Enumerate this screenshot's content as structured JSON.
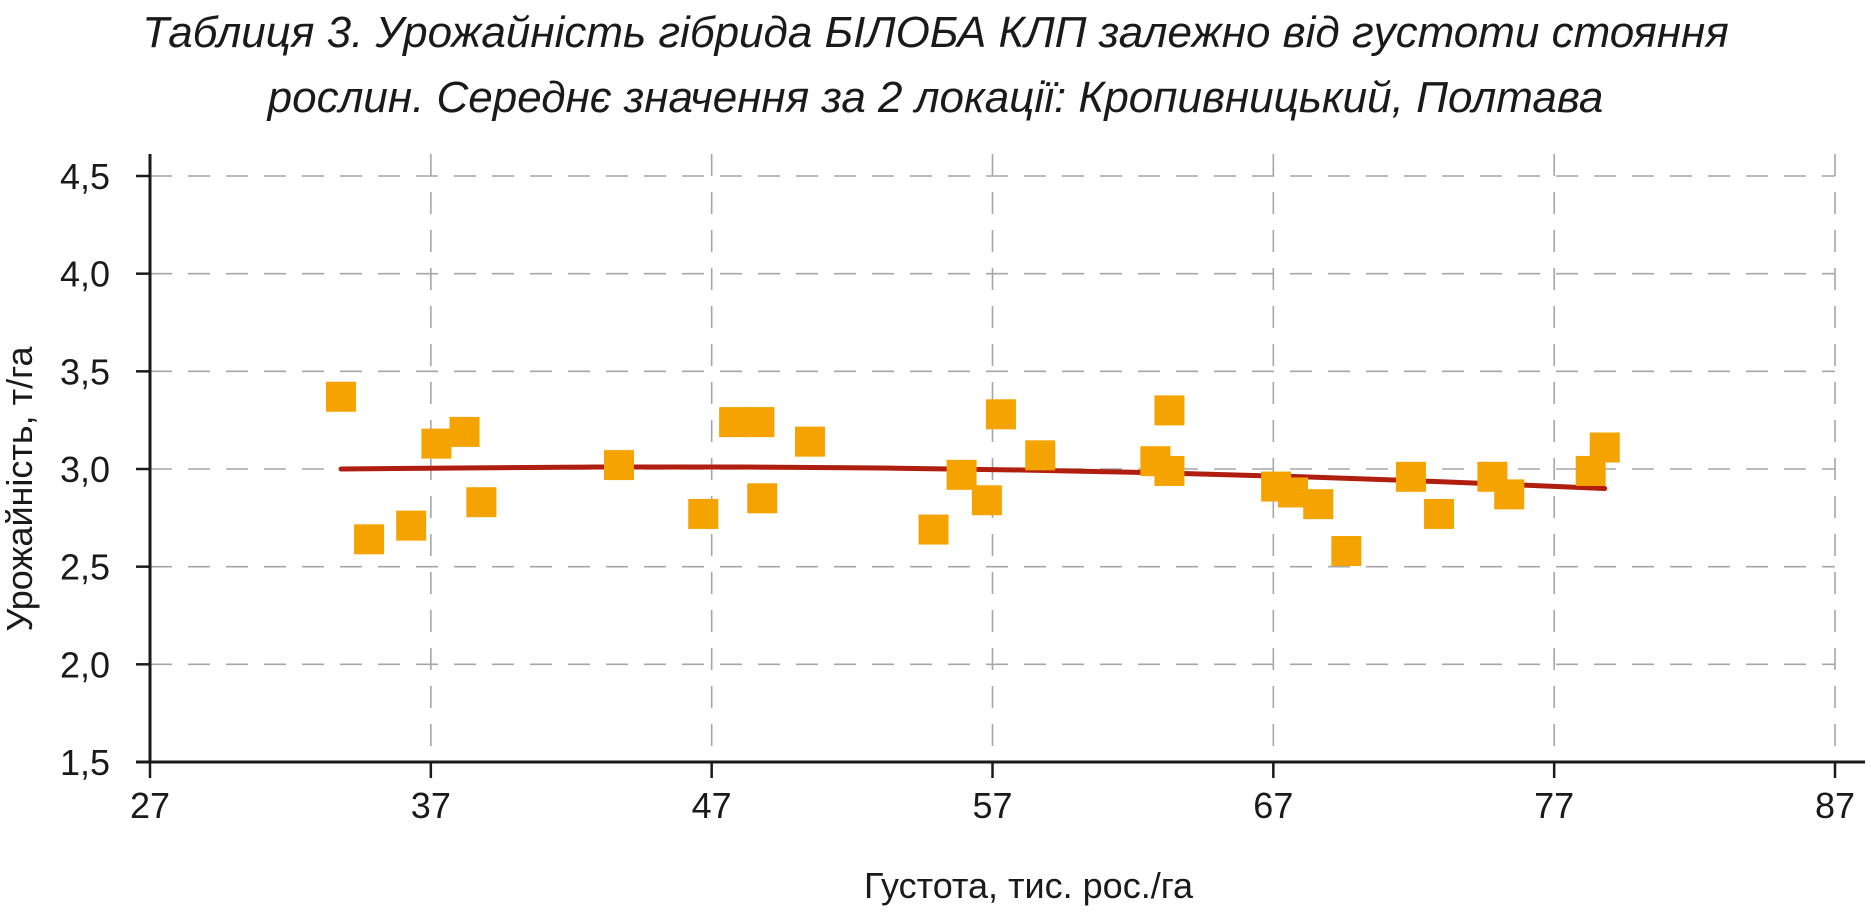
{
  "title": {
    "line1": "Таблиця 3. Урожайність гібрида БІЛОБА КЛП залежно від густоти стояння",
    "line2": "рослин. Середнє значення за 2 локації: Кропивницький, Полтава"
  },
  "chart_data": {
    "type": "scatter",
    "xlabel": "Густота, тис. рос./га",
    "ylabel": "Урожайність, т/га",
    "xlim": [
      27,
      87
    ],
    "ylim": [
      1.5,
      4.5
    ],
    "x_ticks": [
      "27",
      "37",
      "47",
      "57",
      "67",
      "77",
      "87"
    ],
    "y_ticks": [
      "1,5",
      "2,0",
      "2,5",
      "3,0",
      "3,5",
      "4,0",
      "4,5"
    ],
    "grid": true,
    "legend": "none",
    "colors": {
      "points": "#f5a300",
      "trend": "#b01e10",
      "grid": "#a6a6a6",
      "axis": "#1a1a1a"
    },
    "series": [
      {
        "kind": "points",
        "x": [
          33.8,
          34.8,
          36.3,
          37.2,
          38.2,
          38.8,
          43.7,
          46.7,
          47.8,
          48.7,
          48.8,
          50.5,
          54.9,
          55.9,
          56.8,
          57.3,
          58.7,
          62.8,
          63.3,
          63.3,
          67.1,
          67.7,
          68.6,
          69.6,
          71.9,
          72.9,
          74.8,
          75.4,
          78.3,
          78.8
        ],
        "y": [
          3.37,
          2.64,
          2.71,
          3.13,
          3.19,
          2.83,
          3.02,
          2.77,
          3.24,
          3.24,
          2.85,
          3.14,
          2.69,
          2.97,
          2.84,
          3.28,
          3.07,
          3.04,
          3.3,
          2.99,
          2.91,
          2.88,
          2.82,
          2.58,
          2.96,
          2.77,
          2.96,
          2.87,
          2.99,
          3.11
        ]
      },
      {
        "kind": "trend",
        "x": [
          33.8,
          38,
          43,
          48,
          53,
          58,
          63,
          68,
          73,
          78.8
        ],
        "y": [
          3.0,
          3.005,
          3.01,
          3.01,
          3.005,
          2.995,
          2.98,
          2.96,
          2.935,
          2.9
        ]
      }
    ]
  }
}
